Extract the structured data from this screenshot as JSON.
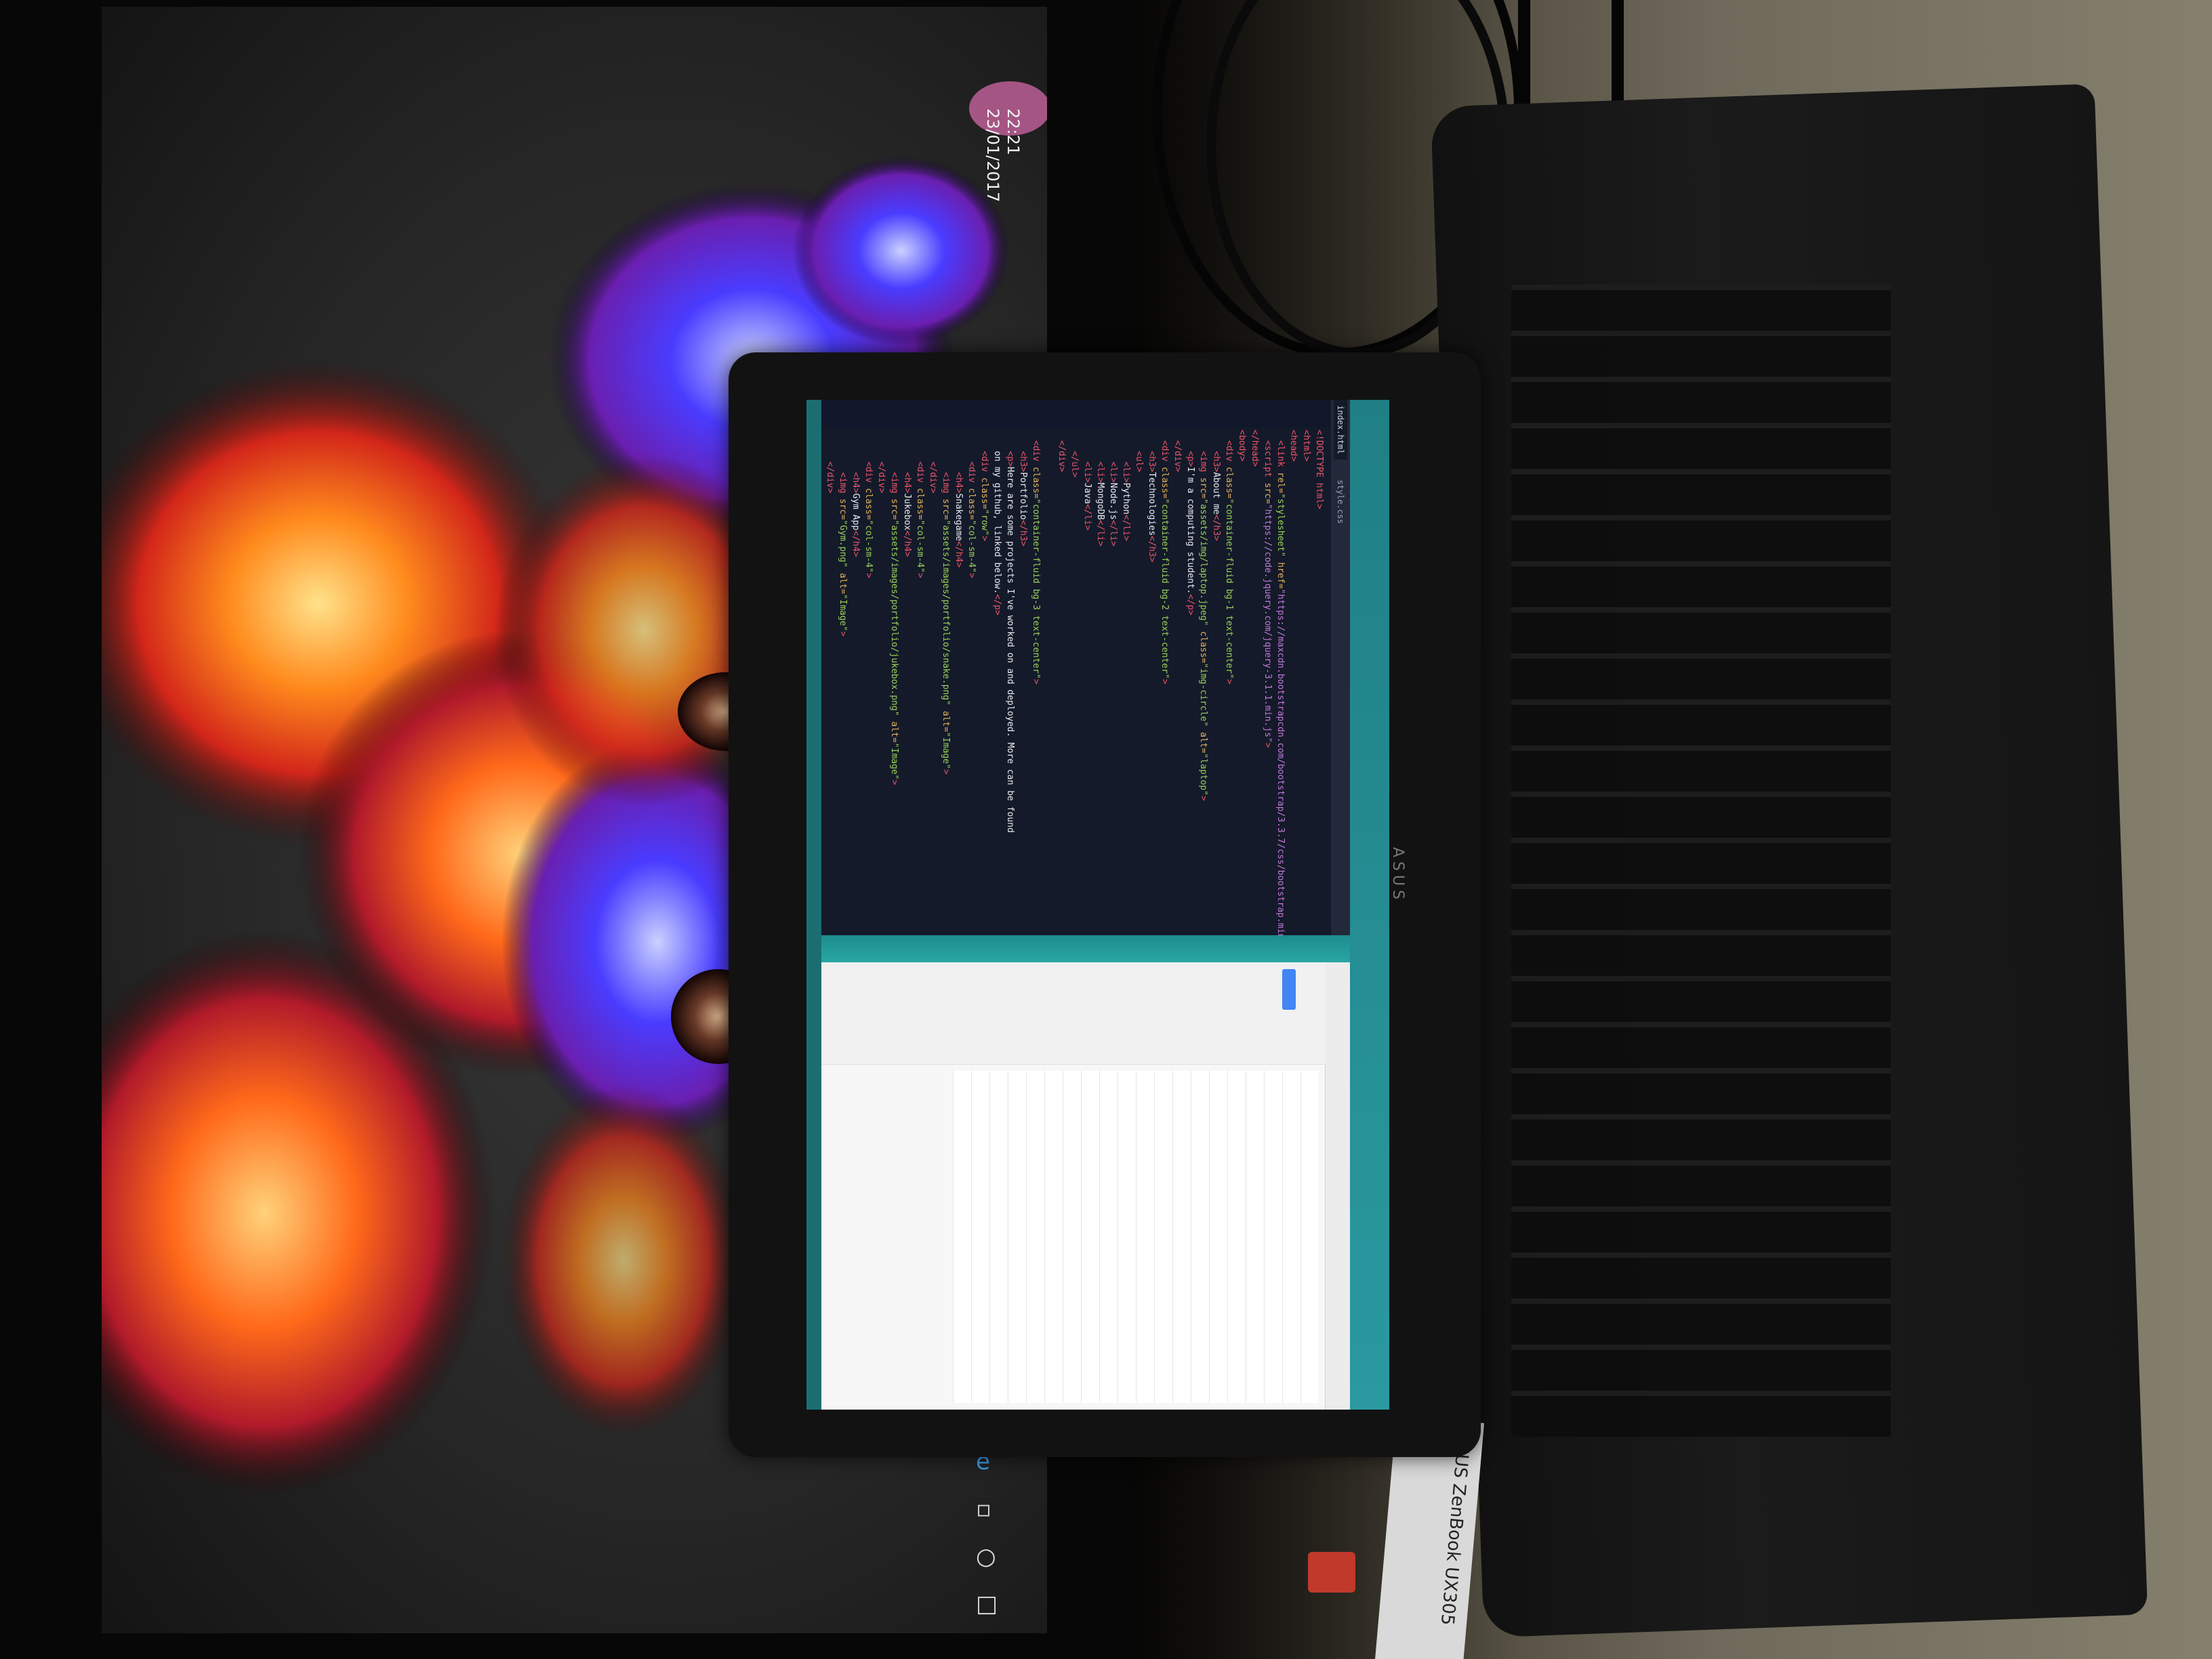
{
  "monitor": {
    "clock_time": "22:21",
    "clock_date": "23/01/2017",
    "taskbar_icons": [
      "start-icon",
      "search-icon",
      "task-view-icon",
      "edge-icon"
    ]
  },
  "laptop": {
    "brand": "ASUS",
    "sticker_text": "ASUS ZenBook UX305",
    "editor": {
      "tabs": [
        "index.html",
        "style.css"
      ],
      "lines": [
        [
          {
            "t": "tag",
            "v": "<!DOCTYPE html>"
          }
        ],
        [
          {
            "t": "tag",
            "v": "<html>"
          }
        ],
        [
          {
            "t": "tag",
            "v": "<head>"
          }
        ],
        [
          {
            "t": "text",
            "v": "  "
          },
          {
            "t": "tag",
            "v": "<link "
          },
          {
            "t": "attr",
            "v": "rel="
          },
          {
            "t": "str",
            "v": "\"stylesheet\""
          },
          {
            "t": "attr",
            "v": " href="
          },
          {
            "t": "link",
            "v": "\"https://maxcdn.bootstrapcdn.com/bootstrap/3.3.7/css/bootstrap.min.css\""
          },
          {
            "t": "tag",
            "v": ">"
          }
        ],
        [
          {
            "t": "text",
            "v": "  "
          },
          {
            "t": "tag",
            "v": "<script "
          },
          {
            "t": "attr",
            "v": "src="
          },
          {
            "t": "link",
            "v": "\"https://code.jquery.com/jquery-3.1.1.min.js\""
          },
          {
            "t": "tag",
            "v": ">"
          }
        ],
        [
          {
            "t": "tag",
            "v": "</head>"
          }
        ],
        [
          {
            "t": "tag",
            "v": "<body>"
          }
        ],
        [
          {
            "t": "text",
            "v": "  "
          },
          {
            "t": "tag",
            "v": "<div "
          },
          {
            "t": "attr",
            "v": "class="
          },
          {
            "t": "str",
            "v": "\"container-fluid bg-1 text-center\""
          },
          {
            "t": "tag",
            "v": ">"
          }
        ],
        [
          {
            "t": "text",
            "v": "    "
          },
          {
            "t": "tag",
            "v": "<h3>"
          },
          {
            "t": "text",
            "v": "About me"
          },
          {
            "t": "tag",
            "v": "</h3>"
          }
        ],
        [
          {
            "t": "text",
            "v": "    "
          },
          {
            "t": "tag",
            "v": "<img "
          },
          {
            "t": "attr",
            "v": "src="
          },
          {
            "t": "str",
            "v": "\"assets/img/laptop.jpeg\""
          },
          {
            "t": "attr",
            "v": " class="
          },
          {
            "t": "str",
            "v": "\"img-circle\""
          },
          {
            "t": "attr",
            "v": " alt="
          },
          {
            "t": "str",
            "v": "\"laptop\""
          },
          {
            "t": "tag",
            "v": ">"
          }
        ],
        [
          {
            "t": "text",
            "v": "    "
          },
          {
            "t": "tag",
            "v": "<p>"
          },
          {
            "t": "text",
            "v": "I'm a computing student."
          },
          {
            "t": "tag",
            "v": "</p>"
          }
        ],
        [
          {
            "t": "text",
            "v": "  "
          },
          {
            "t": "tag",
            "v": "</div>"
          }
        ],
        [
          {
            "t": "text",
            "v": "  "
          },
          {
            "t": "tag",
            "v": "<div "
          },
          {
            "t": "attr",
            "v": "class="
          },
          {
            "t": "str",
            "v": "\"container-fluid bg-2 text-center\""
          },
          {
            "t": "tag",
            "v": ">"
          }
        ],
        [
          {
            "t": "text",
            "v": "    "
          },
          {
            "t": "tag",
            "v": "<h3>"
          },
          {
            "t": "text",
            "v": "Technologies"
          },
          {
            "t": "tag",
            "v": "</h3>"
          }
        ],
        [
          {
            "t": "text",
            "v": "    "
          },
          {
            "t": "tag",
            "v": "<ul>"
          }
        ],
        [
          {
            "t": "text",
            "v": "      "
          },
          {
            "t": "tag",
            "v": "<li>"
          },
          {
            "t": "text",
            "v": "Python"
          },
          {
            "t": "tag",
            "v": "</li>"
          }
        ],
        [
          {
            "t": "text",
            "v": "      "
          },
          {
            "t": "tag",
            "v": "<li>"
          },
          {
            "t": "text",
            "v": "Node.js"
          },
          {
            "t": "tag",
            "v": "</li>"
          }
        ],
        [
          {
            "t": "text",
            "v": "      "
          },
          {
            "t": "tag",
            "v": "<li>"
          },
          {
            "t": "text",
            "v": "MongoDB"
          },
          {
            "t": "tag",
            "v": "</li>"
          }
        ],
        [
          {
            "t": "text",
            "v": "      "
          },
          {
            "t": "tag",
            "v": "<li>"
          },
          {
            "t": "text",
            "v": "Java"
          },
          {
            "t": "tag",
            "v": "</li>"
          }
        ],
        [
          {
            "t": "text",
            "v": "    "
          },
          {
            "t": "tag",
            "v": "</ul>"
          }
        ],
        [
          {
            "t": "text",
            "v": "  "
          },
          {
            "t": "tag",
            "v": "</div>"
          }
        ],
        [
          {
            "t": "text",
            "v": ""
          }
        ],
        [
          {
            "t": "text",
            "v": "  "
          },
          {
            "t": "tag",
            "v": "<div "
          },
          {
            "t": "attr",
            "v": "class="
          },
          {
            "t": "str",
            "v": "\"container-fluid bg-3 text-center\""
          },
          {
            "t": "tag",
            "v": ">"
          }
        ],
        [
          {
            "t": "text",
            "v": "    "
          },
          {
            "t": "tag",
            "v": "<h3>"
          },
          {
            "t": "text",
            "v": "Portfolio"
          },
          {
            "t": "tag",
            "v": "</h3>"
          }
        ],
        [
          {
            "t": "text",
            "v": "    "
          },
          {
            "t": "tag",
            "v": "<p>"
          },
          {
            "t": "text",
            "v": "Here are some projects I've worked on and deployed. More can be found"
          }
        ],
        [
          {
            "t": "text",
            "v": "    on my github, linked below."
          },
          {
            "t": "tag",
            "v": "</p>"
          }
        ],
        [
          {
            "t": "text",
            "v": "    "
          },
          {
            "t": "tag",
            "v": "<div "
          },
          {
            "t": "attr",
            "v": "class="
          },
          {
            "t": "str",
            "v": "\"row\""
          },
          {
            "t": "tag",
            "v": ">"
          }
        ],
        [
          {
            "t": "text",
            "v": "      "
          },
          {
            "t": "tag",
            "v": "<div "
          },
          {
            "t": "attr",
            "v": "class="
          },
          {
            "t": "str",
            "v": "\"col-sm-4\""
          },
          {
            "t": "tag",
            "v": ">"
          }
        ],
        [
          {
            "t": "text",
            "v": "        "
          },
          {
            "t": "tag",
            "v": "<h4>"
          },
          {
            "t": "text",
            "v": "Snakegame"
          },
          {
            "t": "tag",
            "v": "</h4>"
          }
        ],
        [
          {
            "t": "text",
            "v": "        "
          },
          {
            "t": "tag",
            "v": "<img "
          },
          {
            "t": "attr",
            "v": "src="
          },
          {
            "t": "str",
            "v": "\"assets/images/portfolio/snake.png\""
          },
          {
            "t": "attr",
            "v": " alt="
          },
          {
            "t": "str",
            "v": "\"Image\""
          },
          {
            "t": "tag",
            "v": ">"
          }
        ],
        [
          {
            "t": "text",
            "v": "      "
          },
          {
            "t": "tag",
            "v": "</div>"
          }
        ],
        [
          {
            "t": "text",
            "v": "      "
          },
          {
            "t": "tag",
            "v": "<div "
          },
          {
            "t": "attr",
            "v": "class="
          },
          {
            "t": "str",
            "v": "\"col-sm-4\""
          },
          {
            "t": "tag",
            "v": ">"
          }
        ],
        [
          {
            "t": "text",
            "v": "        "
          },
          {
            "t": "tag",
            "v": "<h4>"
          },
          {
            "t": "text",
            "v": "Jukebox"
          },
          {
            "t": "tag",
            "v": "</h4>"
          }
        ],
        [
          {
            "t": "text",
            "v": "        "
          },
          {
            "t": "tag",
            "v": "<img "
          },
          {
            "t": "attr",
            "v": "src="
          },
          {
            "t": "str",
            "v": "\"assets/images/portfolio/jukebox.png\""
          },
          {
            "t": "attr",
            "v": " alt="
          },
          {
            "t": "str",
            "v": "\"Image\""
          },
          {
            "t": "tag",
            "v": ">"
          }
        ],
        [
          {
            "t": "text",
            "v": "      "
          },
          {
            "t": "tag",
            "v": "</div>"
          }
        ],
        [
          {
            "t": "text",
            "v": "      "
          },
          {
            "t": "tag",
            "v": "<div "
          },
          {
            "t": "attr",
            "v": "class="
          },
          {
            "t": "str",
            "v": "\"col-sm-4\""
          },
          {
            "t": "tag",
            "v": ">"
          }
        ],
        [
          {
            "t": "text",
            "v": "        "
          },
          {
            "t": "tag",
            "v": "<h4>"
          },
          {
            "t": "text",
            "v": "Gym App"
          },
          {
            "t": "tag",
            "v": "</h4>"
          }
        ],
        [
          {
            "t": "text",
            "v": "        "
          },
          {
            "t": "tag",
            "v": "<img "
          },
          {
            "t": "attr",
            "v": "src="
          },
          {
            "t": "str",
            "v": "\"Gym.png\""
          },
          {
            "t": "attr",
            "v": " alt="
          },
          {
            "t": "str",
            "v": "\"Image\""
          },
          {
            "t": "tag",
            "v": ">"
          }
        ],
        [
          {
            "t": "text",
            "v": "      "
          },
          {
            "t": "tag",
            "v": "</div>"
          }
        ]
      ]
    }
  }
}
